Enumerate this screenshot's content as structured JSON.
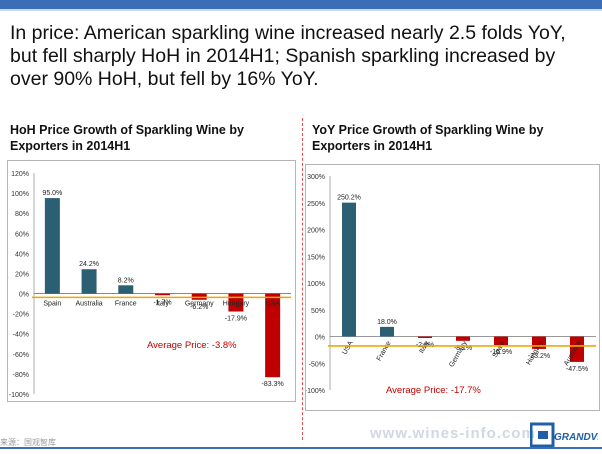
{
  "headline": "In price: American sparkling wine increased nearly 2.5 folds YoY, but fell sharply HoH in 2014H1; Spanish sparkling increased by over 90% HoH, but fell by 16% YoY.",
  "footer": {
    "source": "来源：国观智库",
    "watermark": "www.wines-info.com",
    "logo_text": "GRANDVIEW"
  },
  "colors": {
    "accent": "#3a6fb5",
    "positive": "#2b5f73",
    "negative": "#c00000",
    "avg_line": "#f0a800"
  },
  "chart_data": [
    {
      "type": "bar",
      "title": "HoH Price Growth of Sparkling Wine by Exporters in 2014H1",
      "categories": [
        "Spain",
        "Australia",
        "France",
        "Italy",
        "Germany",
        "Hungary",
        "USA"
      ],
      "values": [
        95.0,
        24.2,
        8.2,
        -1.7,
        -6.2,
        -17.9,
        -83.3
      ],
      "value_labels": [
        "95.0%",
        "24.2%",
        "8.2%",
        "-1.7%",
        "-6.2%",
        "-17.9%",
        "-83.3%"
      ],
      "ylim": [
        -100,
        120
      ],
      "yticks": [
        "120%",
        "100%",
        "80%",
        "60%",
        "40%",
        "20%",
        "0%",
        "-20%",
        "-40%",
        "-60%",
        "-80%",
        "-100%"
      ],
      "average": -3.8,
      "annotation": "Average Price: -3.8%"
    },
    {
      "type": "bar",
      "title": "YoY Price Growth of Sparkling Wine by Exporters in 2014H1",
      "categories": [
        "USA",
        "France",
        "Italy",
        "Germany",
        "Spain",
        "Hungary",
        "Australia"
      ],
      "values": [
        250.2,
        18.0,
        -2.8,
        -8.1,
        -15.9,
        -23.2,
        -47.5
      ],
      "value_labels": [
        "250.2%",
        "18.0%",
        "-2.8%",
        "-8.1%",
        "-15.9%",
        "-23.2%",
        "-47.5%"
      ],
      "ylim": [
        -100,
        300
      ],
      "yticks": [
        "300%",
        "250%",
        "200%",
        "150%",
        "100%",
        "50%",
        "0%",
        "-50%",
        "-100%"
      ],
      "average": -17.7,
      "annotation": "Average Price: -17.7%"
    }
  ]
}
